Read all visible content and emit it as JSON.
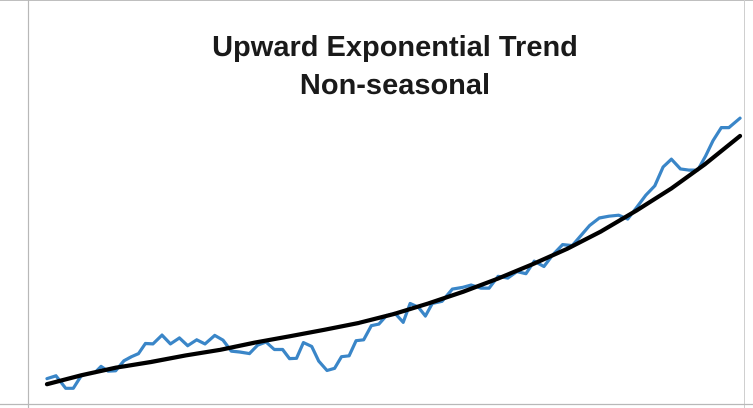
{
  "chart_data": {
    "type": "line",
    "title_lines": [
      "Upward Exponential Trend",
      "Non-seasonal"
    ],
    "xlabel": "",
    "ylabel": "",
    "grid": false,
    "legend": "none",
    "x_range": [
      0,
      100
    ],
    "y_range": [
      0,
      100
    ],
    "series": [
      {
        "color": "#3a86c8",
        "points": [
          [
            0,
            4.6
          ],
          [
            1.3,
            5.5
          ],
          [
            2.7,
            1.5
          ],
          [
            3.8,
            1.5
          ],
          [
            4.9,
            5.4
          ],
          [
            5.9,
            6.2
          ],
          [
            6.9,
            6.5
          ],
          [
            7.8,
            8.5
          ],
          [
            8.8,
            7.0
          ],
          [
            9.9,
            7.1
          ],
          [
            11.1,
            10.3
          ],
          [
            12.2,
            11.6
          ],
          [
            13.2,
            12.6
          ],
          [
            14.2,
            15.8
          ],
          [
            15.3,
            15.7
          ],
          [
            16.6,
            18.5
          ],
          [
            17.8,
            15.7
          ],
          [
            19.1,
            17.6
          ],
          [
            20.3,
            15.1
          ],
          [
            21.6,
            17.0
          ],
          [
            22.8,
            15.7
          ],
          [
            24.2,
            18.4
          ],
          [
            25.4,
            16.9
          ],
          [
            26.6,
            13.4
          ],
          [
            27.8,
            13.1
          ],
          [
            29.2,
            12.6
          ],
          [
            30.4,
            15.3
          ],
          [
            31.6,
            16.3
          ],
          [
            32.8,
            13.9
          ],
          [
            34.0,
            13.9
          ],
          [
            35.0,
            11.0
          ],
          [
            36.0,
            11.1
          ],
          [
            37.0,
            16.1
          ],
          [
            38.2,
            14.9
          ],
          [
            39.2,
            10.2
          ],
          [
            40.4,
            7.2
          ],
          [
            41.5,
            7.9
          ],
          [
            42.5,
            11.6
          ],
          [
            43.6,
            11.9
          ],
          [
            44.6,
            16.7
          ],
          [
            45.7,
            17.0
          ],
          [
            46.8,
            21.5
          ],
          [
            47.9,
            22.0
          ],
          [
            49.0,
            24.8
          ],
          [
            50.2,
            25.5
          ],
          [
            51.4,
            22.6
          ],
          [
            52.4,
            28.6
          ],
          [
            53.6,
            27.4
          ],
          [
            54.6,
            24.6
          ],
          [
            55.6,
            28.6
          ],
          [
            57.0,
            29.3
          ],
          [
            58.5,
            33.2
          ],
          [
            59.9,
            33.7
          ],
          [
            61.2,
            34.5
          ],
          [
            62.6,
            33.5
          ],
          [
            63.8,
            33.5
          ],
          [
            65.1,
            37.3
          ],
          [
            66.5,
            36.7
          ],
          [
            67.8,
            38.8
          ],
          [
            69.1,
            38.1
          ],
          [
            70.3,
            42.1
          ],
          [
            71.7,
            40.4
          ],
          [
            73.0,
            44.2
          ],
          [
            74.4,
            47.4
          ],
          [
            75.8,
            47.1
          ],
          [
            77.0,
            50.2
          ],
          [
            78.3,
            53.5
          ],
          [
            79.7,
            55.9
          ],
          [
            81.1,
            56.5
          ],
          [
            82.5,
            56.8
          ],
          [
            83.8,
            55.6
          ],
          [
            85.1,
            59.3
          ],
          [
            86.4,
            63.2
          ],
          [
            87.7,
            66.2
          ],
          [
            88.9,
            72.2
          ],
          [
            90.1,
            74.7
          ],
          [
            91.4,
            71.6
          ],
          [
            92.6,
            71.2
          ],
          [
            93.9,
            71.2
          ],
          [
            95.0,
            75.6
          ],
          [
            96.1,
            80.6
          ],
          [
            97.3,
            84.8
          ],
          [
            98.4,
            84.8
          ],
          [
            100,
            87.8
          ]
        ]
      },
      {
        "color": "#000000",
        "points": [
          [
            0,
            2.8
          ],
          [
            5.0,
            5.7
          ],
          [
            10.0,
            8.1
          ],
          [
            15.0,
            9.9
          ],
          [
            20.0,
            12.0
          ],
          [
            25.0,
            13.8
          ],
          [
            30.0,
            16.1
          ],
          [
            35.0,
            18.1
          ],
          [
            40.0,
            20.2
          ],
          [
            45.0,
            22.4
          ],
          [
            50.0,
            25.2
          ],
          [
            55.0,
            28.6
          ],
          [
            60.0,
            32.3
          ],
          [
            65.0,
            36.5
          ],
          [
            70.0,
            41.1
          ],
          [
            75.0,
            46.0
          ],
          [
            80.0,
            51.7
          ],
          [
            85.0,
            58.2
          ],
          [
            90.0,
            65.2
          ],
          [
            95.0,
            73.2
          ],
          [
            100,
            82.1
          ]
        ]
      }
    ]
  }
}
